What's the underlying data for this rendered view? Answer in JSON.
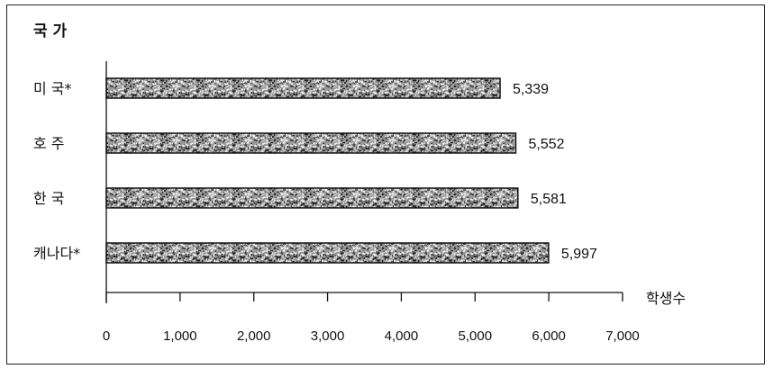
{
  "chart_data": {
    "type": "bar",
    "orientation": "horizontal",
    "y_axis_title": "국 가",
    "x_axis_title": "학생수",
    "categories": [
      "미 국*",
      "호 주",
      "한 국",
      "캐나다*"
    ],
    "values": [
      5339,
      5552,
      5581,
      5997
    ],
    "value_labels": [
      "5,339",
      "5,552",
      "5,581",
      "5,997"
    ],
    "xlim": [
      0,
      7000
    ],
    "x_ticks": [
      0,
      1000,
      2000,
      3000,
      4000,
      5000,
      6000,
      7000
    ],
    "x_tick_labels": [
      "0",
      "1,000",
      "2,000",
      "3,000",
      "4,000",
      "5,000",
      "6,000",
      "7,000"
    ],
    "grid": false,
    "bar_fill": "speckled grey pattern"
  }
}
